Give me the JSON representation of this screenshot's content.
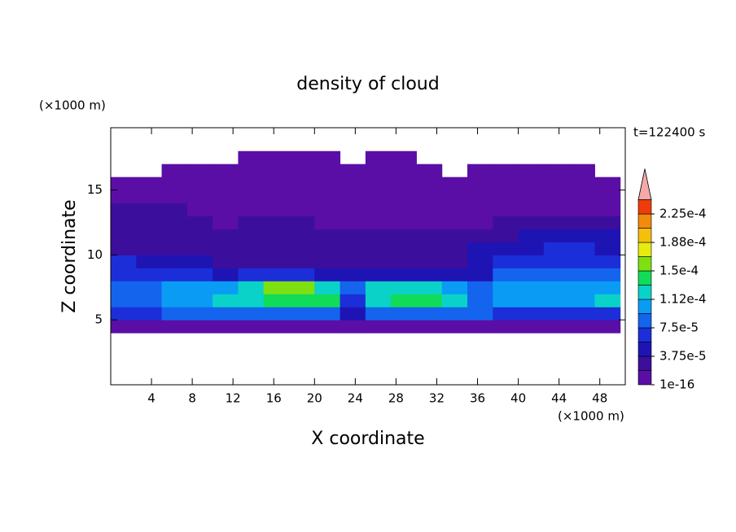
{
  "chart_data": {
    "type": "contour",
    "title": "density of cloud",
    "x_label": "X coordinate",
    "y_label": "Z coordinate",
    "x_unit": "(×1000 m)",
    "y_unit": "(×1000 m)",
    "annotation": "t=122400 s",
    "xlim": [
      0,
      50.5
    ],
    "ylim": [
      0,
      19.8
    ],
    "xticks": [
      4,
      8,
      12,
      16,
      20,
      24,
      28,
      32,
      36,
      40,
      44,
      48
    ],
    "yticks": [
      5,
      10,
      15
    ],
    "x": [
      1.25,
      3.75,
      6.25,
      8.75,
      11.25,
      13.75,
      16.25,
      18.75,
      21.25,
      23.75,
      26.25,
      28.75,
      31.25,
      33.75,
      36.25,
      38.75,
      41.25,
      43.75,
      46.25,
      48.75
    ],
    "y": [
      4.5,
      5.5,
      6.5,
      7.5,
      8.5,
      9.5,
      10.5,
      11.5,
      12.5,
      13.5,
      14.5,
      15.5,
      16.5,
      17.5
    ],
    "z": [
      [
        5e-06,
        5e-06,
        5e-06,
        5e-06,
        5e-06,
        5e-06,
        5e-06,
        5e-06,
        5e-06,
        5e-06,
        5e-06,
        5e-06,
        5e-06,
        5e-06,
        5e-06,
        5e-06,
        5e-06,
        5e-06,
        5e-06,
        5e-06
      ],
      [
        6e-05,
        6e-05,
        8e-05,
        8e-05,
        8e-05,
        8e-05,
        8e-05,
        8e-05,
        8e-05,
        4.5e-05,
        8e-05,
        8e-05,
        8e-05,
        8e-05,
        8e-05,
        6e-05,
        6e-05,
        6e-05,
        6e-05,
        6e-05
      ],
      [
        8e-05,
        8e-05,
        0.0001,
        0.0001,
        0.00012,
        0.00012,
        0.00014,
        0.00014,
        0.00014,
        6e-05,
        0.00012,
        0.00014,
        0.00014,
        0.00012,
        8e-05,
        0.0001,
        0.0001,
        0.0001,
        0.0001,
        0.00012
      ],
      [
        8e-05,
        8e-05,
        0.0001,
        0.0001,
        0.0001,
        0.00012,
        0.00016,
        0.00016,
        0.00012,
        8e-05,
        0.00012,
        0.00012,
        0.00012,
        0.0001,
        8e-05,
        0.0001,
        0.0001,
        0.0001,
        0.0001,
        0.0001
      ],
      [
        6e-05,
        6e-05,
        6e-05,
        6e-05,
        4.5e-05,
        6e-05,
        6e-05,
        6e-05,
        4.5e-05,
        4.5e-05,
        4.5e-05,
        4.5e-05,
        4.5e-05,
        4.5e-05,
        4.5e-05,
        8e-05,
        8e-05,
        8e-05,
        8e-05,
        8e-05
      ],
      [
        6e-05,
        4.5e-05,
        4.5e-05,
        4.5e-05,
        2.5e-05,
        2.5e-05,
        2.5e-05,
        2.5e-05,
        2.5e-05,
        2.5e-05,
        2.5e-05,
        2.5e-05,
        2.5e-05,
        2.5e-05,
        4.5e-05,
        6e-05,
        6e-05,
        6e-05,
        6e-05,
        6e-05
      ],
      [
        2.5e-05,
        2.5e-05,
        2.5e-05,
        2.5e-05,
        2.5e-05,
        2.5e-05,
        2.5e-05,
        2.5e-05,
        2.5e-05,
        2.5e-05,
        2.5e-05,
        2.5e-05,
        2.5e-05,
        2.5e-05,
        4.5e-05,
        4.5e-05,
        4.5e-05,
        6e-05,
        6e-05,
        4.5e-05
      ],
      [
        2.5e-05,
        2.5e-05,
        2.5e-05,
        2.5e-05,
        2.5e-05,
        2.5e-05,
        2.5e-05,
        2.5e-05,
        2.5e-05,
        2.5e-05,
        2.5e-05,
        2.5e-05,
        2.5e-05,
        2.5e-05,
        2.5e-05,
        2.5e-05,
        4.5e-05,
        4.5e-05,
        4.5e-05,
        4.5e-05
      ],
      [
        2.5e-05,
        2.5e-05,
        2.5e-05,
        2.5e-05,
        5e-06,
        2.5e-05,
        2.5e-05,
        2.5e-05,
        5e-06,
        5e-06,
        5e-06,
        5e-06,
        5e-06,
        5e-06,
        5e-06,
        2.5e-05,
        2.5e-05,
        2.5e-05,
        2.5e-05,
        2.5e-05
      ],
      [
        2.5e-05,
        2.5e-05,
        2.5e-05,
        5e-06,
        5e-06,
        5e-06,
        5e-06,
        5e-06,
        5e-06,
        5e-06,
        5e-06,
        5e-06,
        5e-06,
        5e-06,
        5e-06,
        5e-06,
        5e-06,
        5e-06,
        5e-06,
        5e-06
      ],
      [
        5e-06,
        5e-06,
        5e-06,
        5e-06,
        5e-06,
        5e-06,
        5e-06,
        5e-06,
        5e-06,
        5e-06,
        5e-06,
        5e-06,
        5e-06,
        5e-06,
        5e-06,
        5e-06,
        5e-06,
        5e-06,
        5e-06,
        5e-06
      ],
      [
        5e-06,
        5e-06,
        5e-06,
        5e-06,
        5e-06,
        5e-06,
        5e-06,
        5e-06,
        5e-06,
        5e-06,
        5e-06,
        5e-06,
        5e-06,
        5e-06,
        5e-06,
        5e-06,
        5e-06,
        5e-06,
        5e-06,
        5e-06
      ],
      [
        null,
        null,
        5e-06,
        5e-06,
        5e-06,
        5e-06,
        5e-06,
        5e-06,
        5e-06,
        5e-06,
        5e-06,
        5e-06,
        5e-06,
        null,
        5e-06,
        5e-06,
        5e-06,
        5e-06,
        5e-06,
        null
      ],
      [
        null,
        null,
        null,
        null,
        null,
        5e-06,
        5e-06,
        5e-06,
        5e-06,
        null,
        5e-06,
        5e-06,
        null,
        null,
        null,
        null,
        null,
        null,
        null,
        null
      ]
    ],
    "colorbar": {
      "levels": [
        1e-16,
        1.875e-05,
        3.75e-05,
        5.625e-05,
        7.5e-05,
        9.375e-05,
        0.0001125,
        0.00013125,
        0.00015,
        0.00016875,
        0.0001875,
        0.00020625,
        0.000225,
        0.00024375
      ],
      "colors": [
        "#5a0ea6",
        "#3c0e9c",
        "#1e14b4",
        "#1c2ed8",
        "#1464ee",
        "#0a9cf5",
        "#0ad2c8",
        "#10dc5a",
        "#7ee010",
        "#e6ec10",
        "#f4c00c",
        "#f28a0c",
        "#f03c0a"
      ],
      "extend_color": "#f4a8a8",
      "ticks": [
        {
          "value": 1e-16,
          "label": "1e-16"
        },
        {
          "value": 3.75e-05,
          "label": "3.75e-5"
        },
        {
          "value": 7.5e-05,
          "label": "7.5e-5"
        },
        {
          "value": 0.0001125,
          "label": "1.12e-4"
        },
        {
          "value": 0.00015,
          "label": "1.5e-4"
        },
        {
          "value": 0.0001875,
          "label": "1.88e-4"
        },
        {
          "value": 0.000225,
          "label": "2.25e-4"
        }
      ]
    }
  }
}
